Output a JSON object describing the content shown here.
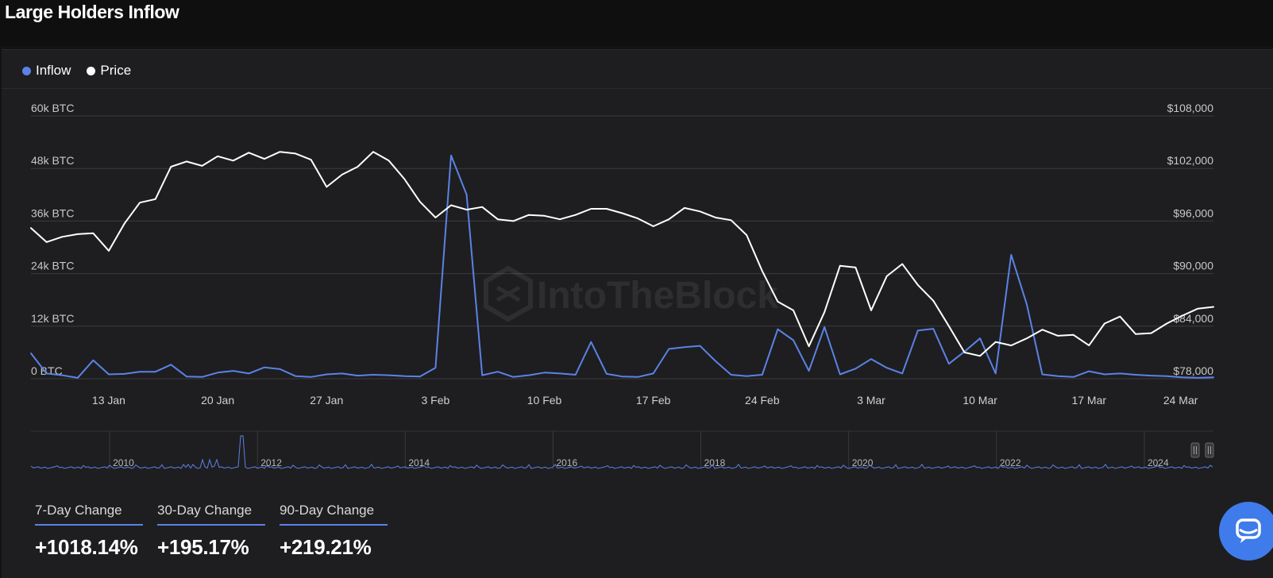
{
  "title": "Large Holders Inflow",
  "legend": {
    "inflow": {
      "label": "Inflow",
      "color": "#5b82e6"
    },
    "price": {
      "label": "Price",
      "color": "#ffffff"
    }
  },
  "watermark": "IntoTheBlock",
  "chart_data": {
    "type": "line",
    "x_tick_labels": [
      "13 Jan",
      "20 Jan",
      "27 Jan",
      "3 Feb",
      "10 Feb",
      "17 Feb",
      "24 Feb",
      "3 Mar",
      "10 Mar",
      "17 Mar",
      "24 Mar"
    ],
    "x_tick_days": [
      3,
      10,
      17,
      24,
      31,
      38,
      45,
      52,
      59,
      66,
      73
    ],
    "x_range_days": [
      -2,
      74
    ],
    "y_left": {
      "ticks": [
        "0 BTC",
        "12k BTC",
        "24k BTC",
        "36k BTC",
        "48k BTC",
        "60k BTC"
      ],
      "range": [
        0,
        60000
      ],
      "unit": "BTC"
    },
    "y_right": {
      "ticks": [
        "$78,000",
        "$84,000",
        "$90,000",
        "$96,000",
        "$102,000",
        "$108,000"
      ],
      "range": [
        78000,
        108000
      ]
    },
    "grid": true,
    "legend_position": "top-left",
    "series": [
      {
        "name": "Inflow",
        "axis": "left",
        "color": "#5b82e6",
        "x": [
          -2,
          -1,
          0,
          1,
          2,
          3,
          4,
          5,
          6,
          7,
          8,
          9,
          10,
          11,
          12,
          13,
          14,
          15,
          16,
          17,
          18,
          19,
          20,
          21,
          22,
          23,
          24,
          25,
          26,
          27,
          28,
          29,
          30,
          31,
          32,
          33,
          34,
          35,
          36,
          37,
          38,
          39,
          40,
          41,
          42,
          43,
          44,
          45,
          46,
          47,
          48,
          49,
          50,
          51,
          52,
          53,
          54,
          55,
          56,
          57,
          58,
          59,
          60,
          61,
          62,
          63,
          64,
          65,
          66,
          67,
          68,
          69,
          70,
          71,
          72,
          73,
          74
        ],
        "values": [
          5800,
          1200,
          800,
          200,
          4200,
          1000,
          1100,
          1600,
          1600,
          3200,
          500,
          400,
          1400,
          1800,
          1200,
          2600,
          2200,
          600,
          400,
          1000,
          1200,
          700,
          900,
          800,
          600,
          500,
          2500,
          51000,
          42000,
          800,
          1600,
          400,
          800,
          1400,
          1200,
          900,
          8400,
          1100,
          500,
          400,
          1200,
          6800,
          7200,
          7500,
          4000,
          900,
          600,
          900,
          11300,
          8800,
          1800,
          11800,
          1000,
          2300,
          4500,
          2500,
          1200,
          11000,
          11400,
          3400,
          6200,
          9200,
          1200,
          28300,
          17000,
          1000,
          600,
          400,
          1700,
          1000,
          1200,
          900,
          700,
          600,
          300,
          200,
          300
        ]
      },
      {
        "name": "Price",
        "axis": "right",
        "color": "#ffffff",
        "x": [
          -2,
          -1,
          0,
          1,
          2,
          3,
          4,
          5,
          6,
          7,
          8,
          9,
          10,
          11,
          12,
          13,
          14,
          15,
          16,
          17,
          18,
          19,
          20,
          21,
          22,
          23,
          24,
          25,
          26,
          27,
          28,
          29,
          30,
          31,
          32,
          33,
          34,
          35,
          36,
          37,
          38,
          39,
          40,
          41,
          42,
          43,
          44,
          45,
          46,
          47,
          48,
          49,
          50,
          51,
          52,
          53,
          54,
          55,
          56,
          57,
          58,
          59,
          60,
          61,
          62,
          63,
          64,
          65,
          66,
          67,
          68,
          69,
          70,
          71,
          72,
          73,
          74
        ],
        "values": [
          95200,
          93600,
          94200,
          94500,
          94600,
          92600,
          95700,
          98100,
          98500,
          102200,
          102800,
          102300,
          103400,
          102900,
          103800,
          103100,
          103900,
          103700,
          103000,
          99900,
          101300,
          102200,
          103900,
          102900,
          100800,
          98200,
          96400,
          97800,
          97300,
          97600,
          96200,
          96000,
          96700,
          96600,
          96200,
          96700,
          97400,
          97400,
          96900,
          96300,
          95400,
          96200,
          97500,
          97100,
          96400,
          96100,
          94400,
          90300,
          86800,
          85800,
          81700,
          85600,
          90900,
          90700,
          85800,
          89700,
          91100,
          88700,
          86900,
          84000,
          81000,
          80600,
          82200,
          81800,
          82600,
          83600,
          82900,
          83000,
          81800,
          84300,
          85100,
          83100,
          83200,
          84300,
          85200,
          86000,
          86200
        ]
      }
    ],
    "navigator": {
      "year_labels": [
        "2010",
        "2012",
        "2014",
        "2016",
        "2018",
        "2020",
        "2022",
        "2024"
      ]
    }
  },
  "changes": [
    {
      "label": "7-Day Change",
      "value": "+1018.14%"
    },
    {
      "label": "30-Day Change",
      "value": "+195.17%"
    },
    {
      "label": "90-Day Change",
      "value": "+219.21%"
    }
  ]
}
